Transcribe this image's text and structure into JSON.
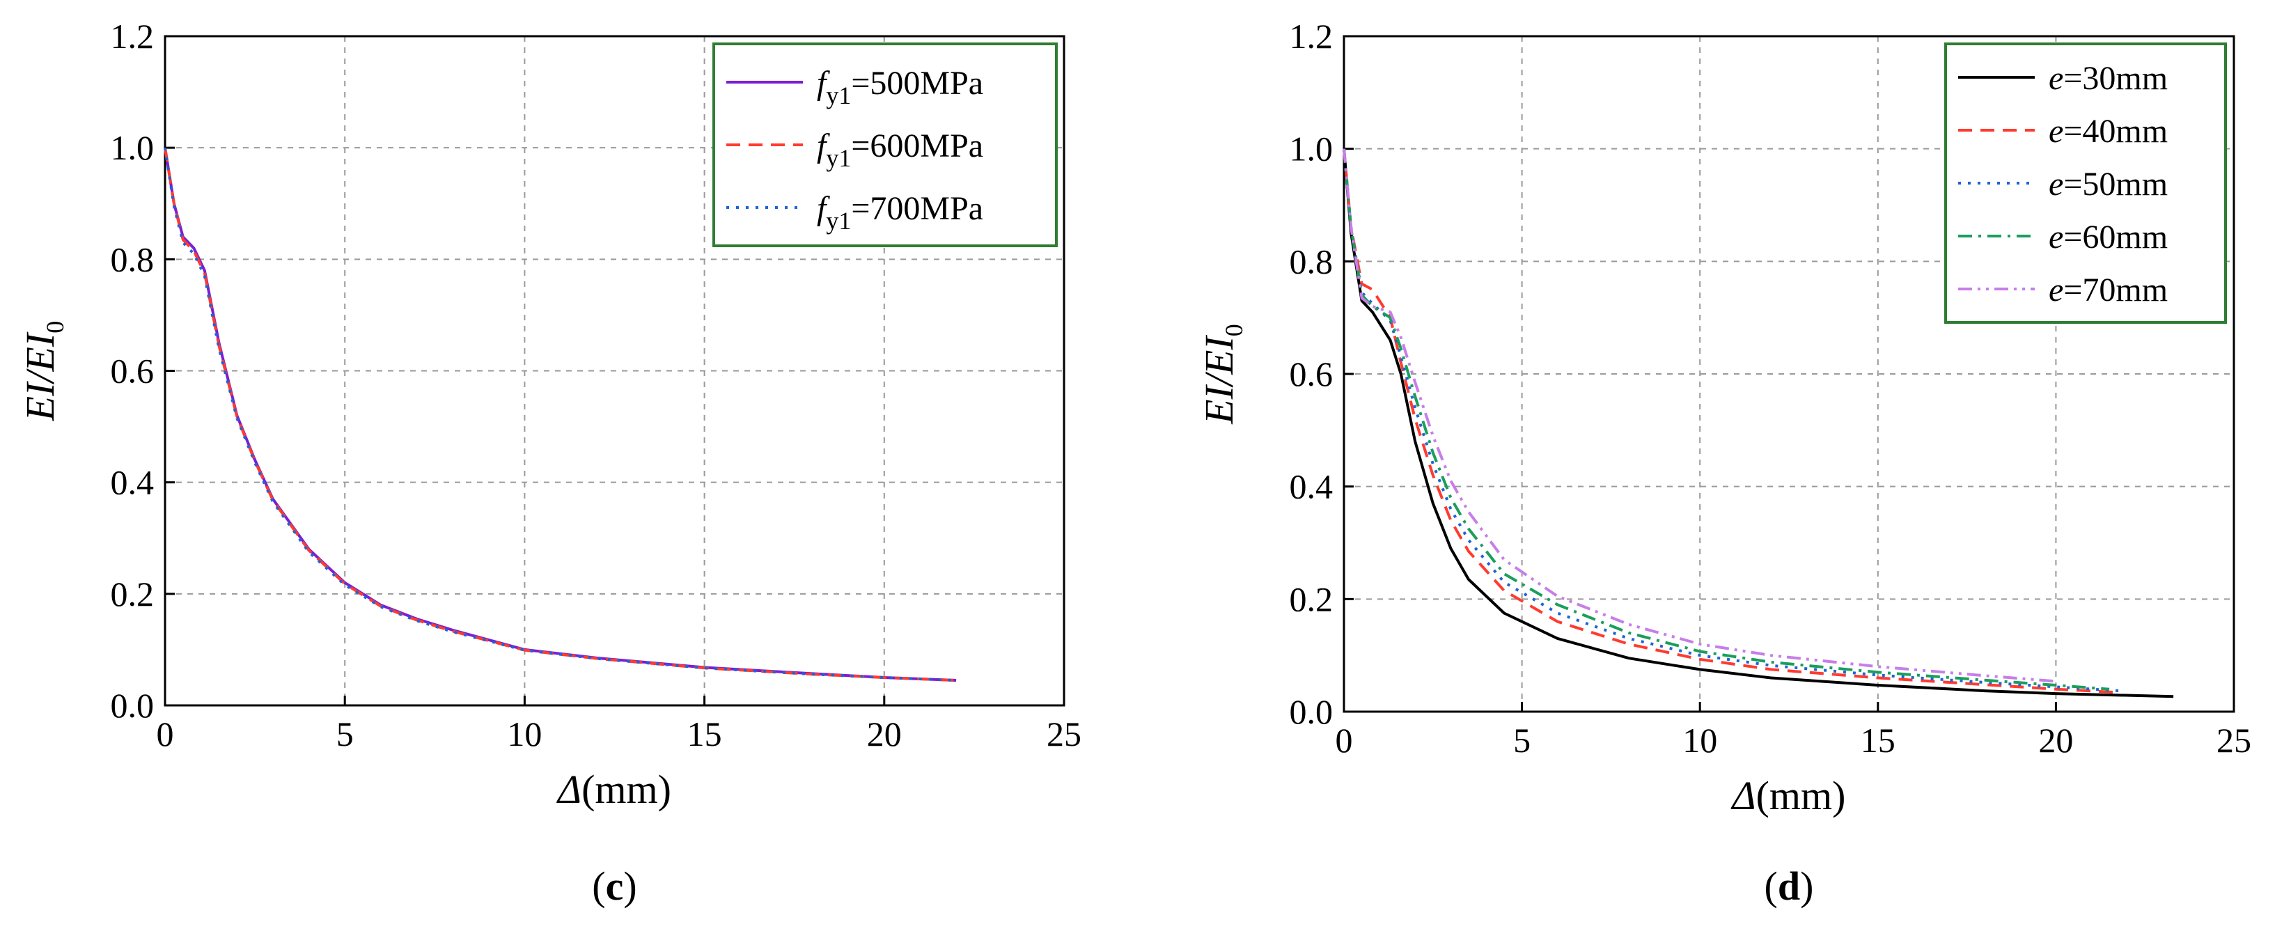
{
  "chart_data": [
    {
      "type": "line",
      "panel_label": "c",
      "xlabel_symbol": "Δ",
      "xlabel_unit": "(mm)",
      "ylabel_parts": [
        "EI",
        "/",
        "EI",
        "0"
      ],
      "xlim": [
        0,
        25
      ],
      "ylim": [
        0,
        1.2
      ],
      "xticks": [
        "0",
        "5",
        "10",
        "15",
        "20",
        "25"
      ],
      "yticks": [
        "0.0",
        "0.2",
        "0.4",
        "0.6",
        "0.8",
        "1.0",
        "1.2"
      ],
      "grid": true,
      "legend_position": "top-right",
      "legend_frame_color": "#2e7d32",
      "series": [
        {
          "name": "fy1=500MPa",
          "label_symbol": "f",
          "label_sub": "y1",
          "label_rest": "=500MPa",
          "color": "#7b1fd1",
          "dash": "solid",
          "x": [
            0,
            0.25,
            0.5,
            0.8,
            1.1,
            1.5,
            2,
            2.5,
            3,
            4,
            5,
            6,
            7,
            8,
            10,
            12,
            15,
            18,
            20,
            22
          ],
          "y": [
            1.0,
            0.9,
            0.84,
            0.82,
            0.78,
            0.65,
            0.52,
            0.44,
            0.37,
            0.28,
            0.22,
            0.18,
            0.155,
            0.135,
            0.1,
            0.085,
            0.068,
            0.057,
            0.05,
            0.045
          ]
        },
        {
          "name": "fy1=600MPa",
          "label_symbol": "f",
          "label_sub": "y1",
          "label_rest": "=600MPa",
          "color": "#ff3b30",
          "dash": "dashed",
          "x": [
            0,
            0.25,
            0.5,
            0.8,
            1.1,
            1.5,
            2,
            2.5,
            3,
            4,
            5,
            6,
            7,
            8,
            10,
            12,
            15,
            18,
            20,
            22
          ],
          "y": [
            1.0,
            0.9,
            0.835,
            0.815,
            0.775,
            0.645,
            0.518,
            0.438,
            0.368,
            0.278,
            0.218,
            0.178,
            0.153,
            0.133,
            0.099,
            0.084,
            0.067,
            0.056,
            0.05,
            0.045
          ]
        },
        {
          "name": "fy1=700MPa",
          "label_symbol": "f",
          "label_sub": "y1",
          "label_rest": "=700MPa",
          "color": "#1e63d6",
          "dash": "dotted",
          "x": [
            0,
            0.25,
            0.5,
            0.8,
            1.1,
            1.5,
            2,
            2.5,
            3,
            4,
            5,
            6,
            7,
            8,
            10,
            12,
            15,
            18,
            20,
            22
          ],
          "y": [
            1.0,
            0.895,
            0.83,
            0.81,
            0.77,
            0.64,
            0.515,
            0.435,
            0.365,
            0.275,
            0.216,
            0.177,
            0.152,
            0.132,
            0.099,
            0.084,
            0.067,
            0.056,
            0.05,
            0.045
          ]
        }
      ]
    },
    {
      "type": "line",
      "panel_label": "d",
      "xlabel_symbol": "Δ",
      "xlabel_unit": "(mm)",
      "ylabel_parts": [
        "EI",
        "/",
        "EI",
        "0"
      ],
      "xlim": [
        0,
        25
      ],
      "ylim": [
        0,
        1.2
      ],
      "xticks": [
        "0",
        "5",
        "10",
        "15",
        "20",
        "25"
      ],
      "yticks": [
        "0.0",
        "0.2",
        "0.4",
        "0.6",
        "0.8",
        "1.0",
        "1.2"
      ],
      "grid": true,
      "legend_position": "top-right",
      "legend_frame_color": "#2e7d32",
      "series": [
        {
          "name": "e=30mm",
          "label_symbol": "e",
          "label_sub": "",
          "label_rest": "=30mm",
          "color": "#000000",
          "dash": "solid",
          "x": [
            0,
            0.2,
            0.5,
            0.8,
            1.3,
            1.6,
            2,
            2.5,
            3,
            3.5,
            4.5,
            6,
            8,
            10,
            12,
            15,
            18,
            20,
            23.3
          ],
          "y": [
            1.0,
            0.85,
            0.73,
            0.71,
            0.66,
            0.6,
            0.48,
            0.37,
            0.29,
            0.235,
            0.175,
            0.13,
            0.095,
            0.075,
            0.06,
            0.047,
            0.037,
            0.032,
            0.027
          ]
        },
        {
          "name": "e=40mm",
          "label_symbol": "e",
          "label_sub": "",
          "label_rest": "=40mm",
          "color": "#ff3b30",
          "dash": "dashed",
          "x": [
            0,
            0.2,
            0.5,
            0.8,
            1.3,
            1.6,
            2,
            2.5,
            3,
            3.5,
            4.5,
            6,
            8,
            10,
            12,
            15,
            18,
            20,
            21.8
          ],
          "y": [
            1.0,
            0.86,
            0.76,
            0.75,
            0.7,
            0.62,
            0.52,
            0.42,
            0.34,
            0.285,
            0.215,
            0.16,
            0.12,
            0.093,
            0.075,
            0.06,
            0.048,
            0.04,
            0.034
          ]
        },
        {
          "name": "e=50mm",
          "label_symbol": "e",
          "label_sub": "",
          "label_rest": "=50mm",
          "color": "#1e63d6",
          "dash": "dotted",
          "x": [
            0,
            0.2,
            0.5,
            0.8,
            1.3,
            1.6,
            2,
            2.5,
            3,
            3.5,
            4.5,
            6,
            8,
            10,
            12,
            15,
            18,
            20,
            21.8
          ],
          "y": [
            1.0,
            0.86,
            0.745,
            0.725,
            0.695,
            0.63,
            0.54,
            0.44,
            0.36,
            0.305,
            0.23,
            0.175,
            0.13,
            0.1,
            0.082,
            0.065,
            0.052,
            0.044,
            0.037
          ]
        },
        {
          "name": "e=60mm",
          "label_symbol": "e",
          "label_sub": "",
          "label_rest": "=60mm",
          "color": "#1a9e5c",
          "dash": "dashdot",
          "x": [
            0,
            0.2,
            0.5,
            0.8,
            1.3,
            1.6,
            2,
            2.5,
            3,
            3.5,
            4.5,
            6,
            8,
            10,
            12,
            15,
            18,
            20,
            21.5
          ],
          "y": [
            1.0,
            0.86,
            0.74,
            0.72,
            0.7,
            0.645,
            0.56,
            0.46,
            0.38,
            0.325,
            0.245,
            0.19,
            0.14,
            0.107,
            0.088,
            0.07,
            0.056,
            0.047,
            0.04
          ]
        },
        {
          "name": "e=70mm",
          "label_symbol": "e",
          "label_sub": "",
          "label_rest": "=70mm",
          "color": "#c77ee8",
          "dash": "dashdotdot",
          "x": [
            0,
            0.2,
            0.5,
            0.8,
            1.3,
            1.6,
            2,
            2.5,
            3,
            3.5,
            4.5,
            6,
            8,
            10,
            12,
            15,
            18,
            20
          ],
          "y": [
            1.0,
            0.86,
            0.735,
            0.72,
            0.71,
            0.665,
            0.585,
            0.49,
            0.41,
            0.355,
            0.27,
            0.205,
            0.155,
            0.12,
            0.1,
            0.08,
            0.064,
            0.054
          ]
        }
      ]
    }
  ]
}
